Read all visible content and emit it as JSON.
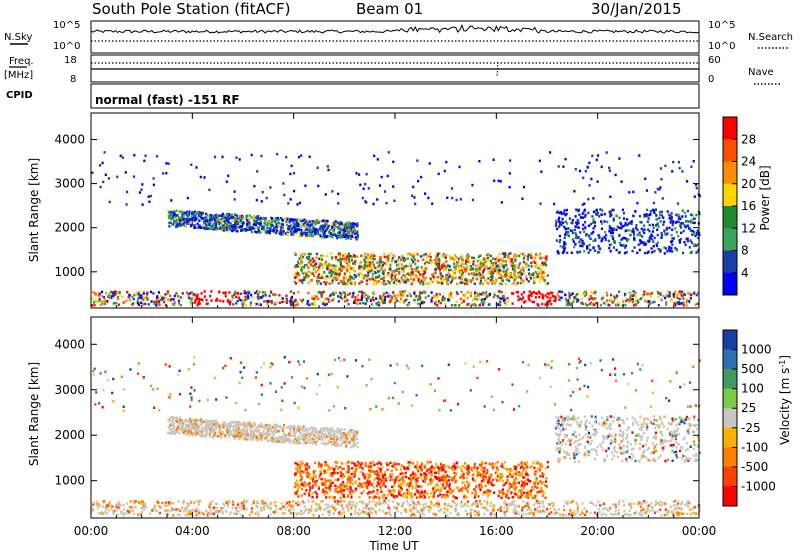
{
  "header": {
    "station": "South Pole Station (fitACF)",
    "beam": "Beam 01",
    "date": "30/Jan/2015"
  },
  "summary_panels": {
    "nsky_label": "N.Sky",
    "nsearch_label": "N.Search",
    "noise_ticks_left": [
      "10^5",
      "10^0"
    ],
    "noise_ticks_right": [
      "10^5",
      "10^0"
    ],
    "freq_label": "Freq.",
    "freq_unit": "[MHz]",
    "freq_ticks": [
      "18",
      "8"
    ],
    "nave_label": "Nave",
    "nave_ticks": [
      "60",
      "0"
    ],
    "cpid_label": "CPID",
    "cpid_text": "normal (fast) -151 RF"
  },
  "chart_data": [
    {
      "type": "heatmap",
      "panel": "power",
      "ylabel": "Slant Range [km]",
      "xlabel": "",
      "x_ticks": [
        "00:00",
        "04:00",
        "08:00",
        "12:00",
        "16:00",
        "20:00",
        "00:00"
      ],
      "y_ticks": [
        "1000",
        "2000",
        "3000",
        "4000"
      ],
      "ylim": [
        180,
        4600
      ],
      "colorbar": {
        "label": "Power [dB]",
        "ticks": [
          "28",
          "24",
          "20",
          "16",
          "12",
          "8",
          "4"
        ],
        "colors": [
          "#ff0000",
          "#ff4d00",
          "#ff8c00",
          "#ffd400",
          "#1f8a2e",
          "#3aa35c",
          "#1a3ea8",
          "#0000ff"
        ]
      },
      "scatter_regions": [
        {
          "t0": 0.0,
          "t1": 24.0,
          "r0": 200,
          "r1": 520,
          "level": "mixed"
        },
        {
          "t0": 3.0,
          "t1": 10.5,
          "r0": 1800,
          "r1": 2500,
          "level": "mid"
        },
        {
          "t0": 7.5,
          "t1": 16.5,
          "r0": 600,
          "r1": 1500,
          "level": "high"
        },
        {
          "t0": 18.5,
          "t1": 24.0,
          "r0": 1400,
          "r1": 2400,
          "level": "low"
        }
      ]
    },
    {
      "type": "heatmap",
      "panel": "velocity",
      "ylabel": "Slant Range [km]",
      "xlabel": "Time UT",
      "x_ticks": [
        "00:00",
        "04:00",
        "08:00",
        "12:00",
        "16:00",
        "20:00",
        "00:00"
      ],
      "y_ticks": [
        "1000",
        "2000",
        "3000",
        "4000"
      ],
      "ylim": [
        180,
        4600
      ],
      "colorbar": {
        "label": "Velocity [m s^-1]",
        "ticks": [
          "1000",
          "500",
          "100",
          "25",
          "-25",
          "-100",
          "-500",
          "-1000"
        ],
        "colors": [
          "#1a3ea8",
          "#2e6fb0",
          "#3d9b5f",
          "#7acb4a",
          "#c8c8c0",
          "#ffb000",
          "#ff8000",
          "#ff4000",
          "#ff0000"
        ]
      }
    }
  ]
}
